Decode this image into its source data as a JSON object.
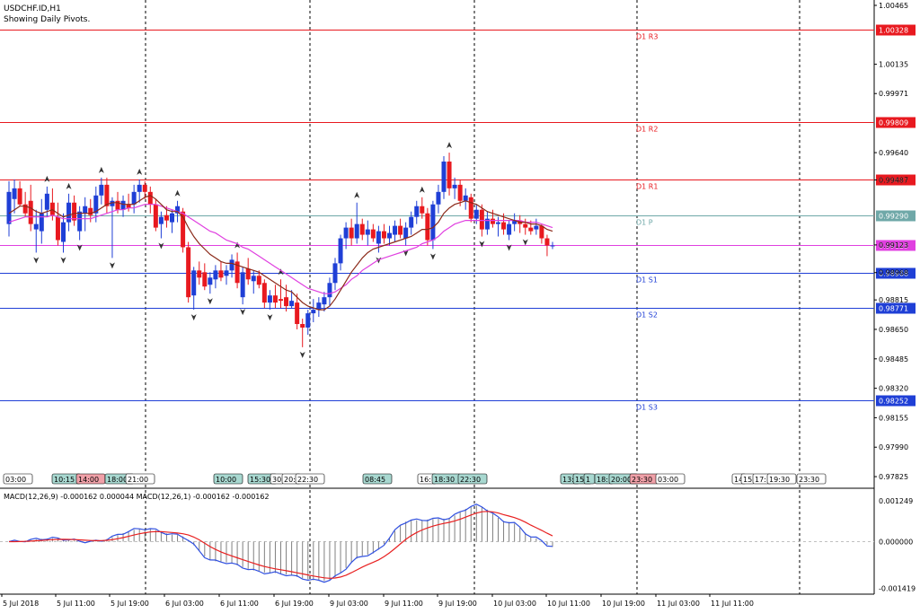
{
  "header": {
    "symbol_line": "USDCHF.ID,H1",
    "pivot_note": "Showing Daily Pivots."
  },
  "colors": {
    "bull": "#1f3fd6",
    "bear": "#e8191f",
    "ma_fast": "#8b2a1a",
    "ma_slow": "#e040e0",
    "resistance": "#e8191f",
    "support": "#1f3fd6",
    "pivot": "#6fa8a8",
    "macd_hist": "#808080",
    "macd_line": "#3050e0",
    "signal_line": "#e82020"
  },
  "chart_data": [
    {
      "type": "candlestick",
      "title": "USDCHF.ID,H1",
      "y_ticks": [
        "1.00465",
        "1.00135",
        "0.99971",
        "0.99640",
        "0.99487",
        "0.99123",
        "0.98968",
        "0.98815",
        "0.98650",
        "0.98485",
        "0.98320",
        "0.98155",
        "0.97990",
        "0.97825"
      ],
      "pivot_levels": [
        {
          "label": "D1 R3",
          "value": 1.00328,
          "tag": "1.00328",
          "kind": "resistance"
        },
        {
          "label": "D1 R2",
          "value": 0.99809,
          "tag": "0.99809",
          "kind": "resistance"
        },
        {
          "label": "D1 R1",
          "value": 0.99487,
          "tag": "0.99487",
          "kind": "resistance"
        },
        {
          "label": "D1 P",
          "value": 0.9929,
          "tag": "0.99290",
          "kind": "pivot"
        },
        {
          "label": "",
          "value": 0.99123,
          "tag": "0.99123",
          "kind": "current"
        },
        {
          "label": "D1 S1",
          "value": 0.98968,
          "tag": "0.98968",
          "kind": "support"
        },
        {
          "label": "D1 S2",
          "value": 0.98771,
          "tag": "0.98771",
          "kind": "support"
        },
        {
          "label": "D1 S3",
          "value": 0.98252,
          "tag": "0.98252",
          "kind": "support"
        }
      ],
      "time_labels": [
        {
          "text": "03:00",
          "style": "plain"
        },
        {
          "text": "10:15",
          "style": "teal"
        },
        {
          "text": "14:00",
          "style": "pink"
        },
        {
          "text": "18:00",
          "style": "teal"
        },
        {
          "text": "21:00",
          "style": "plain"
        },
        {
          "text": "10:00",
          "style": "teal"
        },
        {
          "text": "15:30",
          "style": "teal"
        },
        {
          "text": "30",
          "style": "plain"
        },
        {
          "text": "20:",
          "style": "plain"
        },
        {
          "text": "22:30",
          "style": "plain"
        },
        {
          "text": "08:45",
          "style": "teal"
        },
        {
          "text": "16:",
          "style": "plain"
        },
        {
          "text": "18:30",
          "style": "teal"
        },
        {
          "text": "22:30",
          "style": "teal"
        },
        {
          "text": "13:",
          "style": "teal"
        },
        {
          "text": "15:",
          "style": "teal"
        },
        {
          "text": "1",
          "style": "teal"
        },
        {
          "text": "18:",
          "style": "teal"
        },
        {
          "text": "20:00",
          "style": "teal"
        },
        {
          "text": "23:30",
          "style": "pink"
        },
        {
          "text": "03:00",
          "style": "plain"
        },
        {
          "text": "14",
          "style": "plain"
        },
        {
          "text": "15",
          "style": "plain"
        },
        {
          "text": "17:",
          "style": "plain"
        },
        {
          "text": "19:30",
          "style": "plain"
        },
        {
          "text": "23:30",
          "style": "plain"
        }
      ],
      "candles": [
        {
          "o": 0.9924,
          "h": 0.9948,
          "l": 0.9917,
          "c": 0.9942
        },
        {
          "o": 0.9938,
          "h": 0.9949,
          "l": 0.993,
          "c": 0.9944
        },
        {
          "o": 0.9944,
          "h": 0.9948,
          "l": 0.9934,
          "c": 0.9935
        },
        {
          "o": 0.9935,
          "h": 0.9942,
          "l": 0.9928,
          "c": 0.993
        },
        {
          "o": 0.9937,
          "h": 0.9946,
          "l": 0.992,
          "c": 0.9924
        },
        {
          "o": 0.9921,
          "h": 0.9932,
          "l": 0.9908,
          "c": 0.9924
        },
        {
          "o": 0.992,
          "h": 0.9938,
          "l": 0.9913,
          "c": 0.993
        },
        {
          "o": 0.9932,
          "h": 0.9945,
          "l": 0.9928,
          "c": 0.9941
        },
        {
          "o": 0.9936,
          "h": 0.9944,
          "l": 0.9926,
          "c": 0.9929
        },
        {
          "o": 0.9928,
          "h": 0.9936,
          "l": 0.9912,
          "c": 0.9915
        },
        {
          "o": 0.9914,
          "h": 0.993,
          "l": 0.9908,
          "c": 0.9925
        },
        {
          "o": 0.9925,
          "h": 0.9941,
          "l": 0.992,
          "c": 0.9936
        },
        {
          "o": 0.9936,
          "h": 0.994,
          "l": 0.9923,
          "c": 0.9926
        },
        {
          "o": 0.992,
          "h": 0.9934,
          "l": 0.9915,
          "c": 0.9931
        },
        {
          "o": 0.993,
          "h": 0.9939,
          "l": 0.992,
          "c": 0.9934
        },
        {
          "o": 0.9933,
          "h": 0.9938,
          "l": 0.9925,
          "c": 0.9929
        },
        {
          "o": 0.993,
          "h": 0.9945,
          "l": 0.9925,
          "c": 0.994
        },
        {
          "o": 0.994,
          "h": 0.995,
          "l": 0.9935,
          "c": 0.9946
        },
        {
          "o": 0.9946,
          "h": 0.995,
          "l": 0.993,
          "c": 0.9934
        },
        {
          "o": 0.9934,
          "h": 0.9939,
          "l": 0.9905,
          "c": 0.9937
        },
        {
          "o": 0.9937,
          "h": 0.9942,
          "l": 0.993,
          "c": 0.9932
        },
        {
          "o": 0.9932,
          "h": 0.994,
          "l": 0.9928,
          "c": 0.9937
        },
        {
          "o": 0.9935,
          "h": 0.9941,
          "l": 0.9931,
          "c": 0.9933
        },
        {
          "o": 0.9935,
          "h": 0.9946,
          "l": 0.993,
          "c": 0.9942
        },
        {
          "o": 0.9942,
          "h": 0.9949,
          "l": 0.9936,
          "c": 0.9946
        },
        {
          "o": 0.9946,
          "h": 0.9948,
          "l": 0.9938,
          "c": 0.9942
        },
        {
          "o": 0.9942,
          "h": 0.9945,
          "l": 0.993,
          "c": 0.9935
        },
        {
          "o": 0.9935,
          "h": 0.9938,
          "l": 0.992,
          "c": 0.9922
        },
        {
          "o": 0.9924,
          "h": 0.9931,
          "l": 0.9916,
          "c": 0.9928
        },
        {
          "o": 0.9929,
          "h": 0.9934,
          "l": 0.9922,
          "c": 0.9926
        },
        {
          "o": 0.9925,
          "h": 0.9932,
          "l": 0.9919,
          "c": 0.993
        },
        {
          "o": 0.993,
          "h": 0.9937,
          "l": 0.9925,
          "c": 0.9934
        },
        {
          "o": 0.9931,
          "h": 0.9933,
          "l": 0.9908,
          "c": 0.9911
        },
        {
          "o": 0.9911,
          "h": 0.9914,
          "l": 0.988,
          "c": 0.9883
        },
        {
          "o": 0.9884,
          "h": 0.99,
          "l": 0.9876,
          "c": 0.9898
        },
        {
          "o": 0.9898,
          "h": 0.9903,
          "l": 0.989,
          "c": 0.9894
        },
        {
          "o": 0.9897,
          "h": 0.9902,
          "l": 0.9887,
          "c": 0.9889
        },
        {
          "o": 0.989,
          "h": 0.9897,
          "l": 0.9885,
          "c": 0.9894
        },
        {
          "o": 0.9893,
          "h": 0.9901,
          "l": 0.9888,
          "c": 0.9898
        },
        {
          "o": 0.9898,
          "h": 0.9903,
          "l": 0.9892,
          "c": 0.9894
        },
        {
          "o": 0.9895,
          "h": 0.9901,
          "l": 0.989,
          "c": 0.9898
        },
        {
          "o": 0.9898,
          "h": 0.9907,
          "l": 0.9894,
          "c": 0.9904
        },
        {
          "o": 0.9903,
          "h": 0.9908,
          "l": 0.9888,
          "c": 0.9891
        },
        {
          "o": 0.9883,
          "h": 0.99,
          "l": 0.9879,
          "c": 0.9897
        },
        {
          "o": 0.9899,
          "h": 0.9905,
          "l": 0.989,
          "c": 0.9893
        },
        {
          "o": 0.9892,
          "h": 0.9898,
          "l": 0.9885,
          "c": 0.9895
        },
        {
          "o": 0.9895,
          "h": 0.9898,
          "l": 0.9888,
          "c": 0.989
        },
        {
          "o": 0.9891,
          "h": 0.9893,
          "l": 0.9877,
          "c": 0.988
        },
        {
          "o": 0.988,
          "h": 0.9887,
          "l": 0.9876,
          "c": 0.9884
        },
        {
          "o": 0.9884,
          "h": 0.989,
          "l": 0.9877,
          "c": 0.988
        },
        {
          "o": 0.9882,
          "h": 0.9893,
          "l": 0.9877,
          "c": 0.9881
        },
        {
          "o": 0.9883,
          "h": 0.989,
          "l": 0.9875,
          "c": 0.9878
        },
        {
          "o": 0.9878,
          "h": 0.9887,
          "l": 0.9877,
          "c": 0.9881
        },
        {
          "o": 0.988,
          "h": 0.9885,
          "l": 0.9865,
          "c": 0.9868
        },
        {
          "o": 0.9868,
          "h": 0.9871,
          "l": 0.9855,
          "c": 0.9866
        },
        {
          "o": 0.9866,
          "h": 0.9876,
          "l": 0.9862,
          "c": 0.9874
        },
        {
          "o": 0.9874,
          "h": 0.9882,
          "l": 0.9869,
          "c": 0.9876
        },
        {
          "o": 0.9876,
          "h": 0.9883,
          "l": 0.9872,
          "c": 0.988
        },
        {
          "o": 0.9879,
          "h": 0.9886,
          "l": 0.9875,
          "c": 0.9883
        },
        {
          "o": 0.9883,
          "h": 0.9894,
          "l": 0.9878,
          "c": 0.9891
        },
        {
          "o": 0.9891,
          "h": 0.9905,
          "l": 0.9887,
          "c": 0.9902
        },
        {
          "o": 0.9902,
          "h": 0.9918,
          "l": 0.9898,
          "c": 0.9916
        },
        {
          "o": 0.9916,
          "h": 0.9925,
          "l": 0.991,
          "c": 0.9922
        },
        {
          "o": 0.9922,
          "h": 0.9927,
          "l": 0.9912,
          "c": 0.9916
        },
        {
          "o": 0.9916,
          "h": 0.9936,
          "l": 0.9913,
          "c": 0.9924
        },
        {
          "o": 0.9924,
          "h": 0.9927,
          "l": 0.9915,
          "c": 0.9918
        },
        {
          "o": 0.9918,
          "h": 0.9926,
          "l": 0.9912,
          "c": 0.9921
        },
        {
          "o": 0.9921,
          "h": 0.9924,
          "l": 0.9914,
          "c": 0.9916
        },
        {
          "o": 0.9913,
          "h": 0.9923,
          "l": 0.9908,
          "c": 0.992
        },
        {
          "o": 0.992,
          "h": 0.9924,
          "l": 0.9913,
          "c": 0.9916
        },
        {
          "o": 0.9916,
          "h": 0.9923,
          "l": 0.9912,
          "c": 0.9919
        },
        {
          "o": 0.9918,
          "h": 0.9926,
          "l": 0.9914,
          "c": 0.9923
        },
        {
          "o": 0.9923,
          "h": 0.9927,
          "l": 0.9916,
          "c": 0.9918
        },
        {
          "o": 0.9916,
          "h": 0.9925,
          "l": 0.9912,
          "c": 0.9922
        },
        {
          "o": 0.9922,
          "h": 0.9931,
          "l": 0.9918,
          "c": 0.9928
        },
        {
          "o": 0.9928,
          "h": 0.9937,
          "l": 0.9924,
          "c": 0.9934
        },
        {
          "o": 0.9934,
          "h": 0.9939,
          "l": 0.9927,
          "c": 0.993
        },
        {
          "o": 0.993,
          "h": 0.9933,
          "l": 0.9912,
          "c": 0.9915
        },
        {
          "o": 0.9915,
          "h": 0.9937,
          "l": 0.991,
          "c": 0.9935
        },
        {
          "o": 0.9935,
          "h": 0.9946,
          "l": 0.993,
          "c": 0.9942
        },
        {
          "o": 0.9942,
          "h": 0.9962,
          "l": 0.9938,
          "c": 0.9959
        },
        {
          "o": 0.9959,
          "h": 0.9964,
          "l": 0.994,
          "c": 0.9944
        },
        {
          "o": 0.9944,
          "h": 0.995,
          "l": 0.9938,
          "c": 0.9946
        },
        {
          "o": 0.9946,
          "h": 0.9949,
          "l": 0.9934,
          "c": 0.9937
        },
        {
          "o": 0.9937,
          "h": 0.9944,
          "l": 0.9932,
          "c": 0.994
        },
        {
          "o": 0.9939,
          "h": 0.9941,
          "l": 0.9925,
          "c": 0.9927
        },
        {
          "o": 0.9927,
          "h": 0.9935,
          "l": 0.9924,
          "c": 0.9932
        },
        {
          "o": 0.9932,
          "h": 0.9935,
          "l": 0.9917,
          "c": 0.9921
        },
        {
          "o": 0.9921,
          "h": 0.9931,
          "l": 0.9918,
          "c": 0.9927
        },
        {
          "o": 0.9927,
          "h": 0.9932,
          "l": 0.9922,
          "c": 0.9924
        },
        {
          "o": 0.9924,
          "h": 0.9928,
          "l": 0.9917,
          "c": 0.9925
        },
        {
          "o": 0.9925,
          "h": 0.993,
          "l": 0.9918,
          "c": 0.9921
        },
        {
          "o": 0.9918,
          "h": 0.9926,
          "l": 0.9915,
          "c": 0.9924
        },
        {
          "o": 0.9924,
          "h": 0.993,
          "l": 0.992,
          "c": 0.9926
        },
        {
          "o": 0.9926,
          "h": 0.9929,
          "l": 0.9919,
          "c": 0.9924
        },
        {
          "o": 0.9924,
          "h": 0.9927,
          "l": 0.9918,
          "c": 0.9922
        },
        {
          "o": 0.9922,
          "h": 0.9926,
          "l": 0.9918,
          "c": 0.992
        },
        {
          "o": 0.9921,
          "h": 0.9927,
          "l": 0.9918,
          "c": 0.9923
        },
        {
          "o": 0.9923,
          "h": 0.9924,
          "l": 0.9913,
          "c": 0.9916
        },
        {
          "o": 0.9916,
          "h": 0.9918,
          "l": 0.9906,
          "c": 0.9912
        },
        {
          "o": 0.9912,
          "h": 0.9914,
          "l": 0.991,
          "c": 0.9912
        }
      ],
      "ma_fast": [
        0.993,
        0.9932,
        0.9934,
        0.9934,
        0.9933,
        0.9931,
        0.993,
        0.9931,
        0.9932,
        0.993,
        0.9928,
        0.9929,
        0.993,
        0.993,
        0.993,
        0.993,
        0.9931,
        0.9933,
        0.9935,
        0.9936,
        0.9936,
        0.9935,
        0.9935,
        0.9935,
        0.9937,
        0.9939,
        0.994,
        0.9938,
        0.9935,
        0.9932,
        0.9931,
        0.9931,
        0.9928,
        0.9922,
        0.9917,
        0.9913,
        0.991,
        0.9907,
        0.9905,
        0.9903,
        0.9902,
        0.9902,
        0.9901,
        0.99,
        0.9899,
        0.9898,
        0.9897,
        0.9895,
        0.9893,
        0.9891,
        0.9889,
        0.9887,
        0.9886,
        0.9883,
        0.988,
        0.9878,
        0.9877,
        0.9876,
        0.9876,
        0.9878,
        0.9882,
        0.9887,
        0.9892,
        0.9897,
        0.9901,
        0.9905,
        0.9908,
        0.991,
        0.9911,
        0.9912,
        0.9913,
        0.9914,
        0.9915,
        0.9916,
        0.9917,
        0.9919,
        0.9921,
        0.9921,
        0.9922,
        0.9925,
        0.993,
        0.9933,
        0.9935,
        0.9936,
        0.9937,
        0.9936,
        0.9935,
        0.9933,
        0.9931,
        0.993,
        0.9929,
        0.9928,
        0.9927,
        0.9926,
        0.9925,
        0.9925,
        0.9924,
        0.9924,
        0.9923,
        0.9921,
        0.992
      ],
      "ma_slow": [
        0.9925,
        0.9926,
        0.9927,
        0.9928,
        0.9928,
        0.9928,
        0.9928,
        0.9928,
        0.9929,
        0.9928,
        0.9927,
        0.9927,
        0.9927,
        0.9927,
        0.9927,
        0.9927,
        0.9928,
        0.9929,
        0.993,
        0.9931,
        0.9932,
        0.9932,
        0.9933,
        0.9933,
        0.9934,
        0.9935,
        0.9935,
        0.9935,
        0.9934,
        0.9933,
        0.9932,
        0.9931,
        0.993,
        0.9928,
        0.9926,
        0.9924,
        0.9922,
        0.992,
        0.9919,
        0.9917,
        0.9915,
        0.9914,
        0.9913,
        0.9911,
        0.991,
        0.9908,
        0.9906,
        0.9904,
        0.9902,
        0.99,
        0.9898,
        0.9896,
        0.9894,
        0.9892,
        0.989,
        0.9888,
        0.9887,
        0.9886,
        0.9885,
        0.9885,
        0.9886,
        0.9888,
        0.989,
        0.9893,
        0.9895,
        0.9898,
        0.99,
        0.9902,
        0.9904,
        0.9905,
        0.9906,
        0.9907,
        0.9908,
        0.9909,
        0.991,
        0.9911,
        0.9913,
        0.9914,
        0.9915,
        0.9917,
        0.992,
        0.9922,
        0.9924,
        0.9925,
        0.9926,
        0.9926,
        0.9926,
        0.9926,
        0.9926,
        0.9926,
        0.9926,
        0.9926,
        0.9926,
        0.9926,
        0.9926,
        0.9925,
        0.9925,
        0.9925,
        0.9924,
        0.9923,
        0.9922
      ]
    },
    {
      "type": "histogram+line",
      "title": "MACD(12,26,9) -0.000162 0.000044 MACD(12,26,1) -0.000162 -0.000162",
      "y_ticks": [
        "0.001249",
        "0.000000",
        "-0.001419"
      ],
      "x_labels": [
        "5 Jul 2018",
        "5 Jul 11:00",
        "5 Jul 19:00",
        "6 Jul 03:00",
        "6 Jul 11:00",
        "6 Jul 19:00",
        "9 Jul 03:00",
        "9 Jul 11:00",
        "9 Jul 19:00",
        "10 Jul 03:00",
        "10 Jul 11:00",
        "10 Jul 19:00",
        "11 Jul 03:00",
        "11 Jul 11:00"
      ],
      "key_points": [
        {
          "i": 0,
          "v": 0.0
        },
        {
          "i": 8,
          "v": 0.0001
        },
        {
          "i": 15,
          "v": 0.0
        },
        {
          "i": 25,
          "v": 0.0004
        },
        {
          "i": 31,
          "v": 0.0002
        },
        {
          "i": 38,
          "v": -0.0006
        },
        {
          "i": 48,
          "v": -0.00095
        },
        {
          "i": 58,
          "v": -0.0012
        },
        {
          "i": 66,
          "v": -0.0004
        },
        {
          "i": 74,
          "v": 0.00065
        },
        {
          "i": 80,
          "v": 0.0007
        },
        {
          "i": 86,
          "v": 0.0011
        },
        {
          "i": 92,
          "v": 0.0006
        },
        {
          "i": 97,
          "v": 0.0001
        },
        {
          "i": 100,
          "v": -0.00016
        }
      ]
    }
  ]
}
